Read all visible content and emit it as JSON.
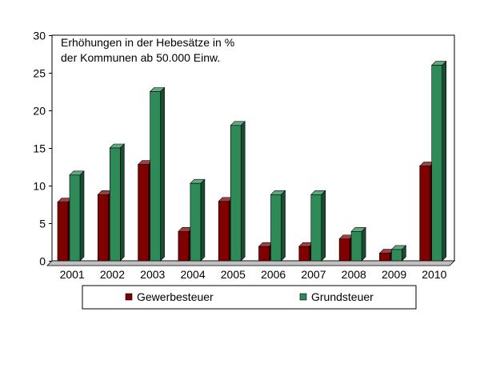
{
  "chart_data": {
    "type": "bar",
    "annotation_lines": [
      "Erhöhungen in der Hebesätze in %",
      "der Kommunen ab 50.000 Einw."
    ],
    "categories": [
      "2001",
      "2002",
      "2003",
      "2004",
      "2005",
      "2006",
      "2007",
      "2008",
      "2009",
      "2010"
    ],
    "series": [
      {
        "name": "Gewerbesteuer",
        "color": "#800000",
        "values": [
          7.8,
          8.8,
          12.8,
          3.9,
          7.9,
          1.9,
          1.9,
          2.9,
          1.0,
          12.6
        ]
      },
      {
        "name": "Grundsteuer",
        "color": "#2e8b57",
        "values": [
          11.4,
          15.0,
          22.5,
          10.3,
          18.0,
          8.8,
          8.8,
          3.9,
          1.5,
          26.0
        ]
      }
    ],
    "yticks": [
      0,
      5,
      10,
      15,
      20,
      25,
      30
    ],
    "ylim": [
      0,
      30
    ],
    "grid": true,
    "legend_position": "bottom"
  }
}
